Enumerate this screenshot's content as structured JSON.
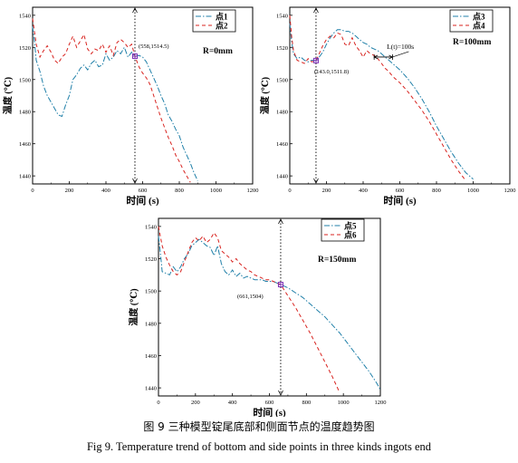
{
  "caption": {
    "cn": "图 9  三种模型锭尾底部和侧面节点的温度趋势图",
    "en": "Fig 9. Temperature trend of bottom and side points in three kinds ingots end"
  },
  "chart_data": [
    {
      "type": "line",
      "xlabel": "时间  (s)",
      "ylabel": "温度 (℃)",
      "xlim": [
        0,
        1200
      ],
      "ylim": [
        1435,
        1545
      ],
      "xticks": [
        0,
        200,
        400,
        600,
        800,
        1000,
        1200
      ],
      "yticks": [
        1440,
        1460,
        1480,
        1500,
        1520,
        1540
      ],
      "grid": false,
      "legend_position": "top-right",
      "annotations": [
        {
          "text": "R=0mm"
        },
        {
          "text": "(558,1514.5)",
          "x": 558,
          "y": 1514.5
        }
      ],
      "vline_x": 558,
      "series": [
        {
          "name": "点1",
          "color": "#1f7fa8",
          "dash": "dashdot",
          "x": [
            0,
            10,
            20,
            40,
            60,
            80,
            100,
            120,
            140,
            160,
            180,
            200,
            220,
            240,
            260,
            280,
            300,
            320,
            340,
            360,
            380,
            400,
            420,
            440,
            460,
            480,
            500,
            520,
            540,
            558,
            580,
            600,
            620,
            640,
            660,
            680,
            700,
            720,
            740,
            760,
            780,
            800,
            820,
            840,
            860,
            880,
            900
          ],
          "y": [
            1533,
            1524,
            1512,
            1505,
            1496,
            1490,
            1486,
            1482,
            1478,
            1477,
            1484,
            1490,
            1500,
            1503,
            1507,
            1509,
            1506,
            1510,
            1512,
            1508,
            1509,
            1516,
            1512,
            1514,
            1518,
            1516,
            1520,
            1514,
            1517,
            1514.5,
            1515,
            1514,
            1511,
            1506,
            1501,
            1496,
            1490,
            1485,
            1478,
            1474,
            1469,
            1465,
            1458,
            1453,
            1448,
            1442,
            1437
          ]
        },
        {
          "name": "点2",
          "color": "#d8231f",
          "dash": "dash",
          "x": [
            0,
            10,
            20,
            40,
            60,
            80,
            100,
            120,
            140,
            160,
            180,
            200,
            220,
            240,
            260,
            280,
            300,
            320,
            340,
            360,
            380,
            400,
            420,
            440,
            460,
            480,
            500,
            520,
            540,
            558,
            580,
            600,
            620,
            640,
            660,
            680,
            700,
            720,
            740,
            760,
            780,
            800,
            820,
            840,
            860
          ],
          "y": [
            1538,
            1530,
            1522,
            1514,
            1518,
            1521,
            1517,
            1512,
            1510,
            1514,
            1516,
            1522,
            1527,
            1520,
            1524,
            1528,
            1519,
            1516,
            1519,
            1518,
            1522,
            1517,
            1521,
            1515,
            1523,
            1525,
            1523,
            1520,
            1522,
            1514.5,
            1508,
            1504,
            1501,
            1497,
            1490,
            1483,
            1476,
            1470,
            1464,
            1459,
            1453,
            1449,
            1444,
            1440,
            1436
          ]
        }
      ]
    },
    {
      "type": "line",
      "xlabel": "时间  (s)",
      "ylabel": "温度 (℃)",
      "xlim": [
        0,
        1200
      ],
      "ylim": [
        1435,
        1545
      ],
      "xticks": [
        0,
        200,
        400,
        600,
        800,
        1000,
        1200
      ],
      "yticks": [
        1440,
        1460,
        1480,
        1500,
        1520,
        1540
      ],
      "grid": false,
      "legend_position": "top-right",
      "annotations": [
        {
          "text": "R=100mm"
        },
        {
          "text": "(143.0,1511.8)",
          "x": 143,
          "y": 1511.8
        },
        {
          "text": "L(t)=100s"
        }
      ],
      "vline_x": 143,
      "span_marker": {
        "x_start": 460,
        "x_end": 560,
        "y": 1514
      },
      "series": [
        {
          "name": "点3",
          "color": "#1f7fa8",
          "dash": "dashdot",
          "x": [
            0,
            10,
            20,
            40,
            60,
            80,
            100,
            120,
            143,
            160,
            180,
            200,
            220,
            240,
            260,
            280,
            300,
            320,
            340,
            360,
            380,
            400,
            420,
            440,
            460,
            480,
            500,
            520,
            540,
            560,
            600,
            640,
            680,
            720,
            760,
            800,
            840,
            880,
            920,
            960,
            1000
          ],
          "y": [
            1535,
            1524,
            1516,
            1513,
            1514,
            1512,
            1511,
            1512,
            1511.8,
            1514,
            1517,
            1522,
            1526,
            1529,
            1531,
            1531,
            1530,
            1530,
            1529,
            1527,
            1525,
            1523,
            1522,
            1520,
            1519,
            1518,
            1516,
            1514,
            1512,
            1510,
            1506,
            1501,
            1495,
            1488,
            1480,
            1471,
            1463,
            1455,
            1448,
            1442,
            1438
          ]
        },
        {
          "name": "点4",
          "color": "#d8231f",
          "dash": "dash",
          "x": [
            0,
            10,
            20,
            40,
            60,
            80,
            100,
            120,
            143,
            160,
            180,
            200,
            220,
            240,
            260,
            280,
            300,
            320,
            340,
            360,
            380,
            400,
            420,
            440,
            460,
            480,
            500,
            520,
            540,
            560,
            600,
            640,
            680,
            720,
            760,
            800,
            840,
            880,
            920,
            960
          ],
          "y": [
            1540,
            1527,
            1518,
            1512,
            1511,
            1510,
            1513,
            1511,
            1511.8,
            1516,
            1521,
            1525,
            1527,
            1526,
            1529,
            1528,
            1522,
            1521,
            1526,
            1521,
            1518,
            1514,
            1518,
            1516,
            1515,
            1513,
            1510,
            1507,
            1505,
            1502,
            1498,
            1493,
            1487,
            1481,
            1474,
            1466,
            1458,
            1450,
            1443,
            1437
          ]
        }
      ]
    },
    {
      "type": "line",
      "xlabel": "时间  (s)",
      "ylabel": "温度 (℃)",
      "xlim": [
        0,
        1200
      ],
      "ylim": [
        1435,
        1545
      ],
      "xticks": [
        0,
        200,
        400,
        600,
        800,
        1000,
        1200
      ],
      "yticks": [
        1440,
        1460,
        1480,
        1500,
        1520,
        1540
      ],
      "grid": false,
      "legend_position": "top-right",
      "annotations": [
        {
          "text": "R=150mm"
        },
        {
          "text": "(661,1504)",
          "x": 661,
          "y": 1504
        }
      ],
      "vline_x": 661,
      "series": [
        {
          "name": "点5",
          "color": "#1f7fa8",
          "dash": "dashdot",
          "x": [
            0,
            10,
            20,
            40,
            60,
            80,
            100,
            120,
            140,
            160,
            180,
            200,
            220,
            240,
            260,
            280,
            300,
            320,
            340,
            360,
            380,
            400,
            420,
            440,
            460,
            480,
            500,
            520,
            540,
            560,
            580,
            600,
            620,
            640,
            661,
            700,
            740,
            780,
            820,
            860,
            900,
            940,
            980,
            1020,
            1060,
            1100,
            1140,
            1180,
            1200
          ],
          "y": [
            1534,
            1524,
            1512,
            1511,
            1510,
            1515,
            1512,
            1515,
            1520,
            1523,
            1528,
            1530,
            1532,
            1530,
            1528,
            1527,
            1522,
            1528,
            1517,
            1512,
            1510,
            1513,
            1509,
            1511,
            1508,
            1509,
            1508,
            1507,
            1507,
            1507,
            1506,
            1506,
            1506,
            1505,
            1504,
            1502,
            1499,
            1496,
            1492,
            1488,
            1484,
            1479,
            1474,
            1468,
            1462,
            1456,
            1450,
            1443,
            1439
          ]
        },
        {
          "name": "点6",
          "color": "#d8231f",
          "dash": "dash",
          "x": [
            0,
            10,
            20,
            40,
            60,
            80,
            100,
            120,
            140,
            160,
            180,
            200,
            220,
            240,
            260,
            280,
            300,
            320,
            340,
            360,
            380,
            400,
            420,
            440,
            460,
            480,
            500,
            520,
            540,
            560,
            580,
            600,
            620,
            640,
            661,
            700,
            740,
            780,
            820,
            860,
            900,
            940,
            980
          ],
          "y": [
            1540,
            1534,
            1528,
            1521,
            1516,
            1512,
            1510,
            1512,
            1518,
            1524,
            1530,
            1533,
            1531,
            1534,
            1530,
            1532,
            1536,
            1533,
            1525,
            1523,
            1521,
            1518,
            1520,
            1517,
            1515,
            1513,
            1512,
            1510,
            1509,
            1508,
            1507,
            1507,
            1506,
            1505,
            1504,
            1497,
            1490,
            1482,
            1474,
            1465,
            1456,
            1447,
            1437
          ]
        }
      ]
    }
  ]
}
